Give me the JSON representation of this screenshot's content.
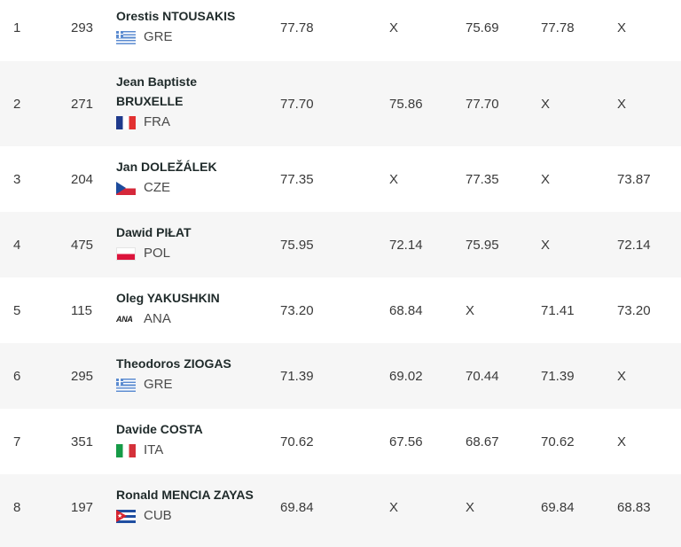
{
  "rows": [
    {
      "rank": "1",
      "bib": "293",
      "name_lines": [
        "Orestis NTOUSAKIS"
      ],
      "country": "GRE",
      "flag": "greece-flag",
      "marks": [
        "77.78",
        "X",
        "75.69",
        "77.78",
        "X"
      ]
    },
    {
      "rank": "2",
      "bib": "271",
      "name_lines": [
        "Jean Baptiste",
        "BRUXELLE"
      ],
      "country": "FRA",
      "flag": "france-flag",
      "marks": [
        "77.70",
        "75.86",
        "77.70",
        "X",
        "X"
      ]
    },
    {
      "rank": "3",
      "bib": "204",
      "name_lines": [
        "Jan DOLEŽÁLEK"
      ],
      "country": "CZE",
      "flag": "czech-flag",
      "marks": [
        "77.35",
        "X",
        "77.35",
        "X",
        "73.87"
      ]
    },
    {
      "rank": "4",
      "bib": "475",
      "name_lines": [
        "Dawid PIŁAT"
      ],
      "country": "POL",
      "flag": "poland-flag",
      "marks": [
        "75.95",
        "72.14",
        "75.95",
        "X",
        "72.14"
      ]
    },
    {
      "rank": "5",
      "bib": "115",
      "name_lines": [
        "Oleg YAKUSHKIN"
      ],
      "country": "ANA",
      "flag": "ana-logo",
      "flag_text": "ANA",
      "marks": [
        "73.20",
        "68.84",
        "X",
        "71.41",
        "73.20"
      ]
    },
    {
      "rank": "6",
      "bib": "295",
      "name_lines": [
        "Theodoros ZIOGAS"
      ],
      "country": "GRE",
      "flag": "greece-flag",
      "marks": [
        "71.39",
        "69.02",
        "70.44",
        "71.39",
        "X"
      ]
    },
    {
      "rank": "7",
      "bib": "351",
      "name_lines": [
        "Davide COSTA"
      ],
      "country": "ITA",
      "flag": "italy-flag",
      "marks": [
        "70.62",
        "67.56",
        "68.67",
        "70.62",
        "X"
      ]
    },
    {
      "rank": "8",
      "bib": "197",
      "name_lines": [
        "Ronald MENCIA ZAYAS"
      ],
      "country": "CUB",
      "flag": "cuba-flag",
      "marks": [
        "69.84",
        "X",
        "X",
        "69.84",
        "68.83"
      ]
    }
  ],
  "colors": {
    "row_alt_bg": "#f6f6f6",
    "name_text": "#1f2a2a",
    "body_text": "#3a3a3a"
  }
}
